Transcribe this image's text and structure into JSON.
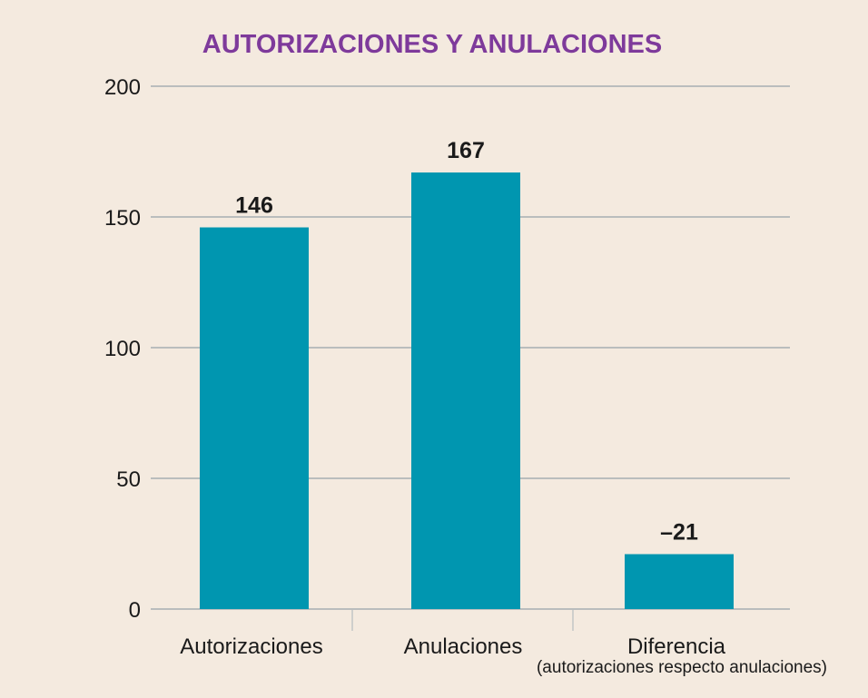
{
  "chart_data": {
    "type": "bar",
    "title": "AUTORIZACIONES Y ANULACIONES",
    "categories": [
      "Autorizaciones",
      "Anulaciones",
      "Diferencia"
    ],
    "category_notes": [
      "",
      "",
      "(autorizaciones respecto anulaciones)"
    ],
    "values": [
      146,
      167,
      -21
    ],
    "data_labels": [
      "146",
      "167",
      "–21"
    ],
    "ylim": [
      0,
      200
    ],
    "yticks": [
      0,
      50,
      100,
      150,
      200
    ],
    "grid": true,
    "xlabel": "",
    "ylabel": "",
    "colors": {
      "bar": "#0096b0",
      "title": "#7e3a9b",
      "grid": "#a6aeb2",
      "text": "#1a1a1a",
      "background": "#f4eadf"
    }
  }
}
